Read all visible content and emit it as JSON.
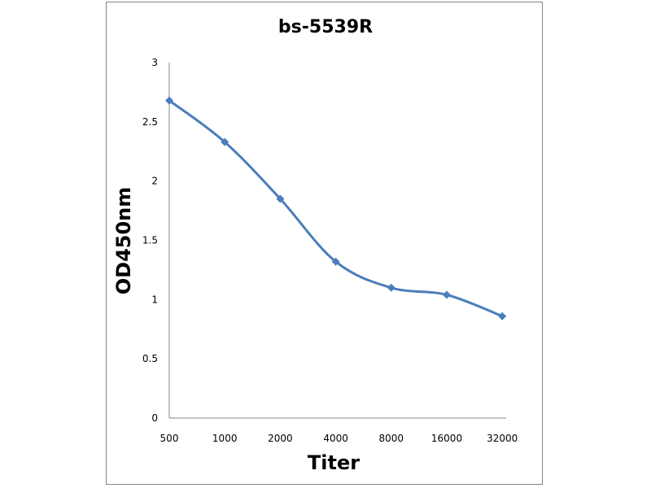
{
  "chart_data": {
    "type": "line",
    "title": "bs-5539R",
    "xlabel": "Titer",
    "ylabel": "OD450nm",
    "categories": [
      "500",
      "1000",
      "2000",
      "4000",
      "8000",
      "16000",
      "32000"
    ],
    "values": [
      2.68,
      2.33,
      1.85,
      1.32,
      1.1,
      1.04,
      0.86
    ],
    "ylim": [
      0,
      3
    ],
    "yticks": [
      "0",
      "0.5",
      "1",
      "1.5",
      "2",
      "2.5",
      "3"
    ],
    "grid": false,
    "legend": "none",
    "marker": "diamond",
    "smooth": true,
    "color": "#4A7EBB"
  }
}
